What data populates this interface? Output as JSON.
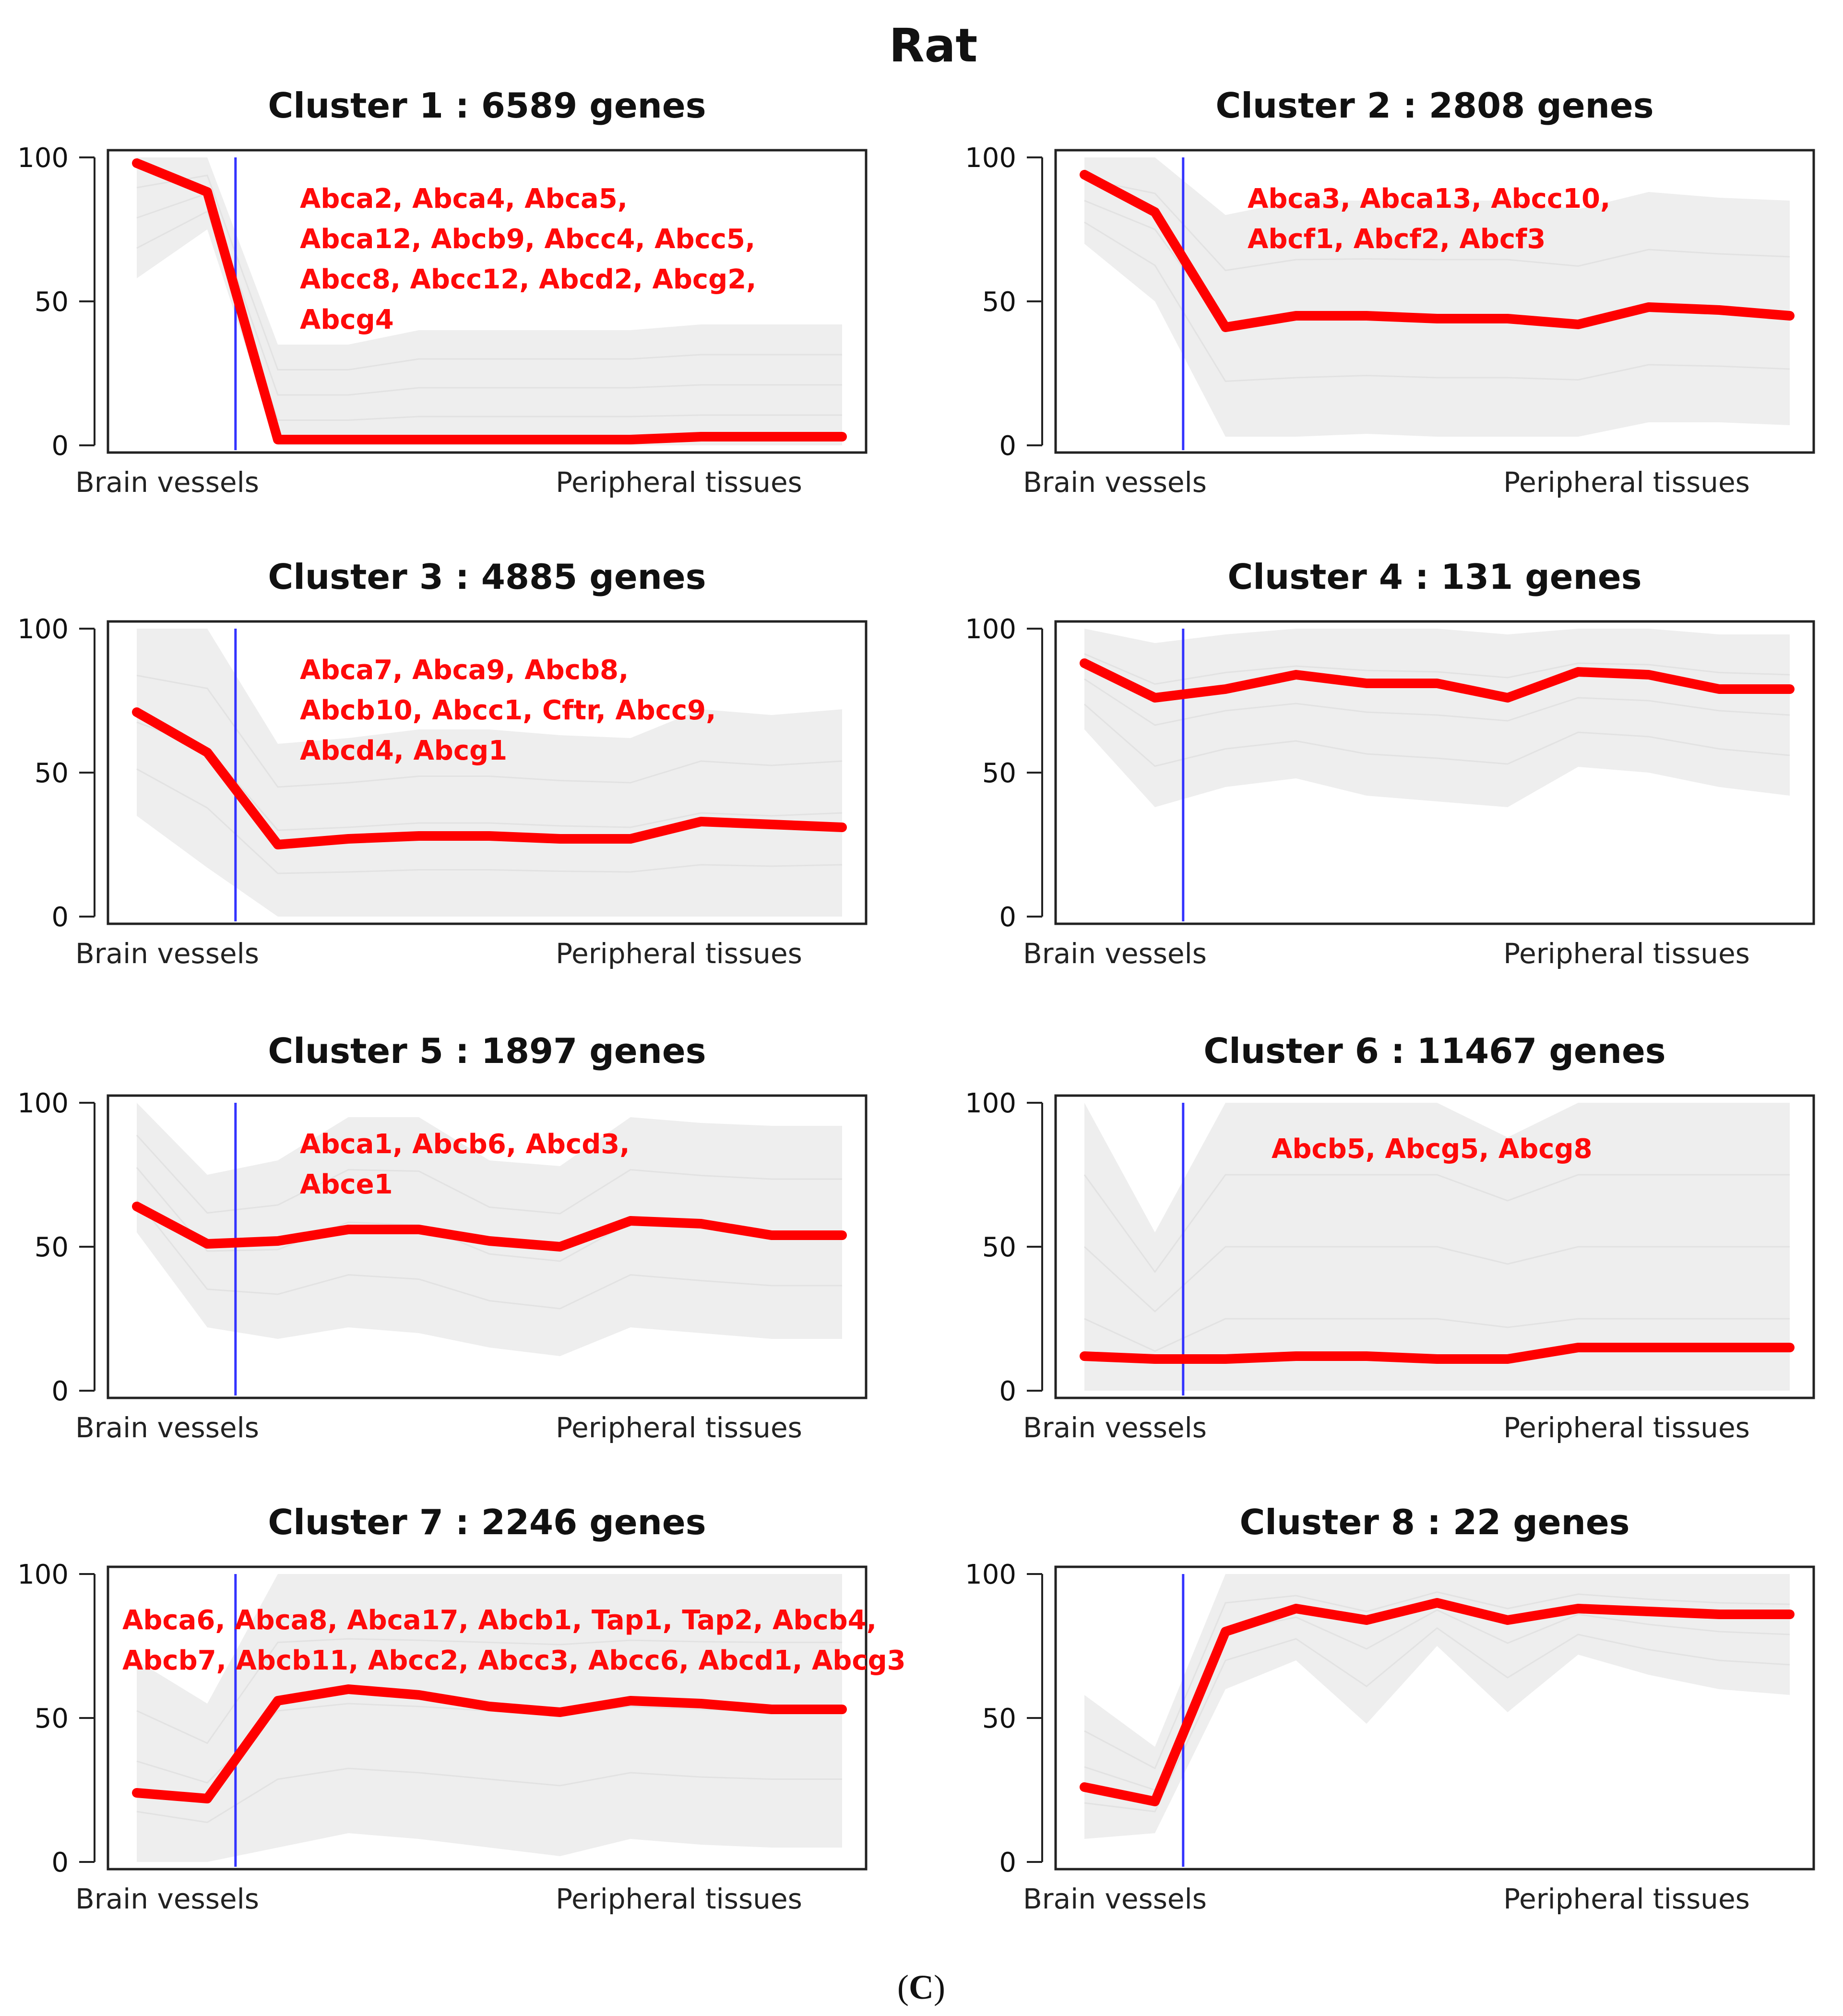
{
  "figure": {
    "title": "Rat",
    "caption_open": "(",
    "caption_letter": "C",
    "caption_close": ")"
  },
  "colors": {
    "mean_line": "#ff0000",
    "band": "#eeeeee",
    "divider": "#3333ff",
    "gene_text": "#ff0a0a",
    "frame": "#222222"
  },
  "chart_data": [
    {
      "type": "line",
      "title": "Cluster  1 :  6589  genes",
      "ylim": [
        0,
        100
      ],
      "yticks": [
        "0",
        "50",
        "100"
      ],
      "xlabel_left": "Brain vessels",
      "xlabel_right": "Peripheral tissues",
      "n_points": 11,
      "mean": [
        98,
        88,
        2,
        2,
        2,
        2,
        2,
        2,
        3,
        3,
        3
      ],
      "band_upper": [
        100,
        100,
        35,
        35,
        40,
        40,
        40,
        40,
        42,
        42,
        42
      ],
      "band_lower": [
        58,
        75,
        0,
        0,
        0,
        0,
        0,
        0,
        0,
        0,
        0
      ],
      "genes": [
        "Abca2, Abca4, Abca5,",
        "Abca12, Abcb9, Abcc4, Abcc5,",
        "Abcc8, Abcc12, Abcd2, Abcg2,",
        "Abcg4"
      ]
    },
    {
      "type": "line",
      "title": "Cluster  2 :  2808  genes",
      "ylim": [
        0,
        100
      ],
      "yticks": [
        "0",
        "50",
        "100"
      ],
      "xlabel_left": "Brain vessels",
      "xlabel_right": "Peripheral tissues",
      "n_points": 11,
      "mean": [
        94,
        81,
        41,
        45,
        45,
        44,
        44,
        42,
        48,
        47,
        45
      ],
      "band_upper": [
        100,
        100,
        80,
        85,
        85,
        85,
        85,
        82,
        88,
        86,
        85
      ],
      "band_lower": [
        70,
        50,
        3,
        3,
        4,
        3,
        3,
        3,
        8,
        8,
        7
      ],
      "genes": [
        "Abca3, Abca13, Abcc10,",
        "Abcf1, Abcf2, Abcf3"
      ]
    },
    {
      "type": "line",
      "title": "Cluster  3 :  4885  genes",
      "ylim": [
        0,
        100
      ],
      "yticks": [
        "0",
        "50",
        "100"
      ],
      "xlabel_left": "Brain vessels",
      "xlabel_right": "Peripheral tissues",
      "n_points": 11,
      "mean": [
        71,
        57,
        25,
        27,
        28,
        28,
        27,
        27,
        33,
        32,
        31
      ],
      "band_upper": [
        100,
        100,
        60,
        62,
        65,
        65,
        63,
        62,
        72,
        70,
        72
      ],
      "band_lower": [
        35,
        17,
        0,
        0,
        0,
        0,
        0,
        0,
        0,
        0,
        0
      ],
      "genes": [
        "Abca7, Abca9, Abcb8,",
        "Abcb10, Abcc1, Cftr, Abcc9,",
        "Abcd4, Abcg1"
      ]
    },
    {
      "type": "line",
      "title": "Cluster  4 :  131  genes",
      "ylim": [
        0,
        100
      ],
      "yticks": [
        "0",
        "50",
        "100"
      ],
      "xlabel_left": "Brain vessels",
      "xlabel_right": "Peripheral tissues",
      "n_points": 11,
      "mean": [
        88,
        76,
        79,
        84,
        81,
        81,
        76,
        85,
        84,
        79,
        79
      ],
      "band_upper": [
        100,
        95,
        98,
        100,
        100,
        100,
        98,
        100,
        100,
        98,
        98
      ],
      "band_lower": [
        65,
        38,
        45,
        48,
        42,
        40,
        38,
        52,
        50,
        45,
        42
      ],
      "genes": []
    },
    {
      "type": "line",
      "title": "Cluster  5 :  1897  genes",
      "ylim": [
        0,
        100
      ],
      "yticks": [
        "0",
        "50",
        "100"
      ],
      "xlabel_left": "Brain vessels",
      "xlabel_right": "Peripheral tissues",
      "n_points": 11,
      "mean": [
        64,
        51,
        52,
        56,
        56,
        52,
        50,
        59,
        58,
        54,
        54
      ],
      "band_upper": [
        100,
        75,
        80,
        95,
        95,
        80,
        78,
        95,
        93,
        92,
        92
      ],
      "band_lower": [
        55,
        22,
        18,
        22,
        20,
        15,
        12,
        22,
        20,
        18,
        18
      ],
      "genes": [
        "Abca1, Abcb6, Abcd3,",
        "Abce1"
      ]
    },
    {
      "type": "line",
      "title": "Cluster  6 :  11467  genes",
      "ylim": [
        0,
        100
      ],
      "yticks": [
        "0",
        "50",
        "100"
      ],
      "xlabel_left": "Brain vessels",
      "xlabel_right": "Peripheral tissues",
      "n_points": 11,
      "mean": [
        12,
        11,
        11,
        12,
        12,
        11,
        11,
        15,
        15,
        15,
        15
      ],
      "band_upper": [
        100,
        55,
        100,
        100,
        100,
        100,
        88,
        100,
        100,
        100,
        100
      ],
      "band_lower": [
        0,
        0,
        0,
        0,
        0,
        0,
        0,
        0,
        0,
        0,
        0
      ],
      "genes": [
        "Abcb5, Abcg5, Abcg8"
      ]
    },
    {
      "type": "line",
      "title": "Cluster  7 :  2246  genes",
      "ylim": [
        0,
        100
      ],
      "yticks": [
        "0",
        "50",
        "100"
      ],
      "xlabel_left": "Brain vessels",
      "xlabel_right": "Peripheral tissues",
      "n_points": 11,
      "mean": [
        24,
        22,
        56,
        60,
        58,
        54,
        52,
        56,
        55,
        53,
        53
      ],
      "band_upper": [
        70,
        55,
        100,
        100,
        100,
        100,
        100,
        100,
        100,
        100,
        100
      ],
      "band_lower": [
        0,
        0,
        5,
        10,
        8,
        5,
        2,
        8,
        6,
        5,
        5
      ],
      "genes": [
        "Abca6, Abca8, Abca17, Abcb1, Tap1, Tap2, Abcb4,",
        "Abcb7, Abcb11, Abcc2, Abcc3, Abcc6, Abcd1, Abcg3"
      ]
    },
    {
      "type": "line",
      "title": "Cluster  8 :  22  genes",
      "ylim": [
        0,
        100
      ],
      "yticks": [
        "0",
        "50",
        "100"
      ],
      "xlabel_left": "Brain vessels",
      "xlabel_right": "Peripheral tissues",
      "n_points": 11,
      "mean": [
        26,
        21,
        80,
        88,
        84,
        90,
        84,
        88,
        87,
        86,
        86
      ],
      "band_upper": [
        58,
        40,
        100,
        100,
        100,
        100,
        100,
        100,
        100,
        100,
        100
      ],
      "band_lower": [
        8,
        10,
        60,
        70,
        48,
        75,
        52,
        72,
        65,
        60,
        58
      ],
      "genes": []
    }
  ]
}
